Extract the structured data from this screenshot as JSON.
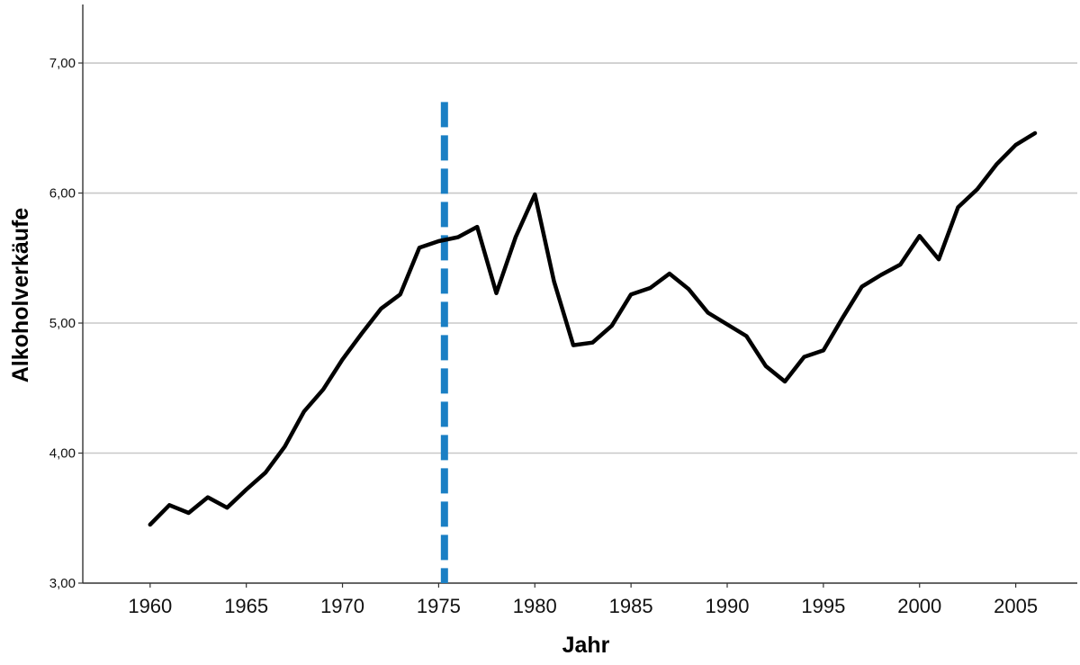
{
  "chart_data": {
    "type": "line",
    "xlabel": "Jahr",
    "ylabel": "Alkoholverkäufe",
    "xlim": [
      1956.5,
      2008.2
    ],
    "ylim": [
      3.0,
      7.45
    ],
    "x_ticks": [
      1960,
      1965,
      1970,
      1975,
      1980,
      1985,
      1990,
      1995,
      2000,
      2005
    ],
    "x_tick_labels": [
      "1960",
      "1965",
      "1970",
      "1975",
      "1980",
      "1985",
      "1990",
      "1995",
      "2000",
      "2005"
    ],
    "y_ticks": [
      3,
      4,
      5,
      6,
      7
    ],
    "y_tick_labels": [
      "3,00",
      "4,00",
      "5,00",
      "6,00",
      "7,00"
    ],
    "grid": "horizontal",
    "legend": "none",
    "series": [
      {
        "color": "#000000",
        "x": [
          1960,
          1961,
          1962,
          1963,
          1964,
          1965,
          1966,
          1967,
          1968,
          1969,
          1970,
          1971,
          1972,
          1973,
          1974,
          1975,
          1976,
          1977,
          1978,
          1979,
          1980,
          1981,
          1982,
          1983,
          1984,
          1985,
          1986,
          1987,
          1988,
          1989,
          1990,
          1991,
          1992,
          1993,
          1994,
          1995,
          1996,
          1997,
          1998,
          1999,
          2000,
          2001,
          2002,
          2003,
          2004,
          2005,
          2006
        ],
        "values": [
          3.45,
          3.6,
          3.54,
          3.66,
          3.58,
          3.72,
          3.85,
          4.05,
          4.32,
          4.49,
          4.72,
          4.92,
          5.11,
          5.22,
          5.58,
          5.63,
          5.66,
          5.74,
          5.23,
          5.66,
          5.99,
          5.32,
          4.83,
          4.85,
          4.98,
          5.22,
          5.27,
          5.38,
          5.26,
          5.08,
          4.99,
          4.9,
          4.67,
          4.55,
          4.74,
          4.79,
          5.04,
          5.28,
          5.37,
          5.45,
          5.67,
          5.49,
          5.89,
          6.03,
          6.22,
          6.37,
          6.46
        ]
      }
    ],
    "annotations": [
      {
        "type": "vertical-dashed-line",
        "x": 1975.3,
        "y_from": 3.0,
        "y_to": 6.7,
        "color": "#1a7fc4"
      }
    ]
  }
}
